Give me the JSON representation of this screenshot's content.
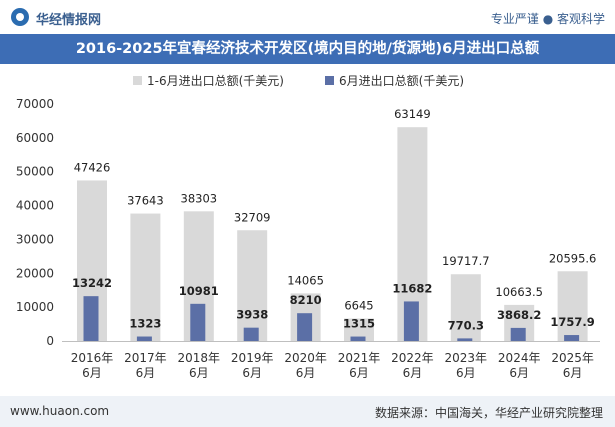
{
  "header": {
    "brand": "华经情报网",
    "slogan": "专业严谨 ● 客观科学"
  },
  "footer": {
    "website": "www.huaon.com",
    "source": "数据来源：中国海关，华经产业研究院整理"
  },
  "colors": {
    "title_bar": "#3d6db5",
    "series_cumulative": "#d9d9d9",
    "series_month": "#5b6fa6"
  },
  "chart_data": {
    "type": "bar",
    "title": "2016-2025年宜春经济技术开发区(境内目的地/货源地)6月进出口总额",
    "categories": [
      "2016年\n6月",
      "2017年\n6月",
      "2018年\n6月",
      "2019年\n6月",
      "2020年\n6月",
      "2021年\n6月",
      "2022年\n6月",
      "2023年\n6月",
      "2024年\n6月",
      "2025年\n6月"
    ],
    "series": [
      {
        "name": "1-6月进出口总额(千美元)",
        "values": [
          47426,
          37643,
          38303,
          32709,
          14065,
          6645,
          63149,
          19717.7,
          10663.5,
          20595.6
        ],
        "labels": [
          "47426",
          "37643",
          "38303",
          "32709",
          "14065",
          "6645",
          "63149",
          "19717.7",
          "10663.5",
          "20595.6"
        ]
      },
      {
        "name": "6月进出口总额(千美元)",
        "values": [
          13242,
          1323,
          10981,
          3938,
          8210,
          1315,
          11682,
          770.3,
          3868.2,
          1757.9
        ],
        "labels": [
          "13242",
          "1323",
          "10981",
          "3938",
          "8210",
          "1315",
          "11682",
          "770.3",
          "3868.2",
          "1757.9"
        ]
      }
    ],
    "ylim": [
      0,
      70000
    ],
    "yticks": [
      0,
      10000,
      20000,
      30000,
      40000,
      50000,
      60000,
      70000
    ],
    "legend": "top"
  }
}
